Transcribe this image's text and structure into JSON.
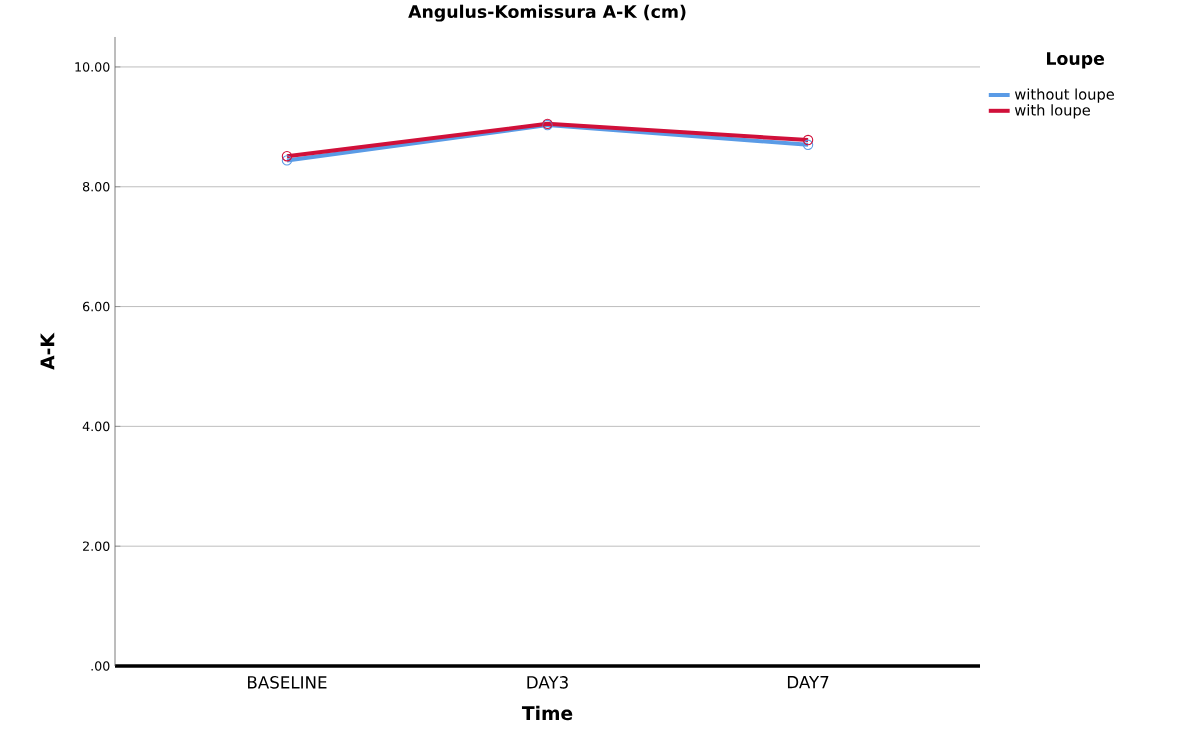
{
  "chart_data": {
    "type": "line",
    "title": "Angulus-Komissura A-K (cm)",
    "xlabel": "Time",
    "ylabel": "A-K",
    "legend_title": "Loupe",
    "categories": [
      "BASELINE",
      "DAY3",
      "DAY7"
    ],
    "series": [
      {
        "name": "without loupe",
        "color": "#5a9be6",
        "values": [
          8.44,
          9.03,
          8.7
        ]
      },
      {
        "name": "with loupe",
        "color": "#d0103a",
        "values": [
          8.51,
          9.05,
          8.78
        ]
      }
    ],
    "ylim": [
      0,
      10.5
    ],
    "yticks": [
      {
        "value": 0,
        "label": ".00"
      },
      {
        "value": 2,
        "label": "2.00"
      },
      {
        "value": 4,
        "label": "4.00"
      },
      {
        "value": 6,
        "label": "6.00"
      },
      {
        "value": 8,
        "label": "8.00"
      },
      {
        "value": 10,
        "label": "10.00"
      }
    ],
    "grid": "y",
    "legend": "top right",
    "marker": "circle",
    "line_style": "solid"
  }
}
